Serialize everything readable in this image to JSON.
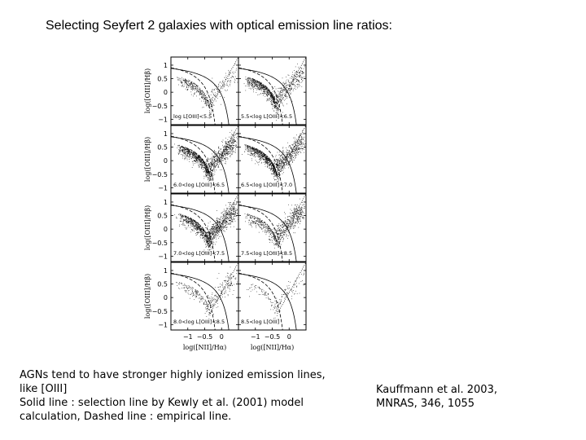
{
  "slide": {
    "title": "Selecting Seyfert 2 galaxies with optical emission line ratios:",
    "caption_left": [
      "AGNs tend to have stronger highly ionized emission lines,",
      "like [OIII]",
      "Solid line  : selection line by Kewly et al. (2001) model",
      "calculation, Dashed line : empirical line."
    ],
    "caption_right": [
      "Kauffmann et  al. 2003,",
      "MNRAS, 346, 1055"
    ]
  },
  "colors": {
    "points": "#000000",
    "frame": "#000000",
    "background": "#ffffff"
  },
  "chart_data": {
    "type": "scatter",
    "layout": {
      "rows": 4,
      "cols": 2
    },
    "xlabel": "log([NII]/Hα)",
    "ylabel": "log([OIII]/Hβ)",
    "xlim": [
      -1.5,
      0.5
    ],
    "ylim": [
      -1.2,
      1.3
    ],
    "x_ticks": [
      -1,
      -0.5,
      0
    ],
    "x_tick_labels": [
      "−1",
      "−0.5",
      "0"
    ],
    "y_ticks": [
      1,
      0.5,
      0,
      -0.5,
      -1
    ],
    "y_tick_labels": [
      "1",
      "0.5",
      "0",
      "−0.5",
      "−1"
    ],
    "panels": [
      {
        "label": "log L[OIII]<5.5",
        "density": 0.35,
        "agn_fraction": 0.3
      },
      {
        "label": "5.5<log L[OIII]<6.5",
        "density": 0.75,
        "agn_fraction": 0.35
      },
      {
        "label": "6.0<log L[OIII]<6.5",
        "density": 1.0,
        "agn_fraction": 0.45
      },
      {
        "label": "6.5<log L[OIII]<7.0",
        "density": 0.95,
        "agn_fraction": 0.45
      },
      {
        "label": "7.0<log L[OIII]<7.5",
        "density": 0.95,
        "agn_fraction": 0.55
      },
      {
        "label": "7.5<log L[OIII]<8.5",
        "density": 0.6,
        "agn_fraction": 0.6
      },
      {
        "label": "8.0<log L[OIII]<8.5",
        "density": 0.25,
        "agn_fraction": 0.55
      },
      {
        "label": "8.5<log L[OIII]",
        "density": 0.12,
        "agn_fraction": 0.55
      }
    ],
    "lines": [
      {
        "name": "Solid line",
        "style": "solid",
        "description": "selection line by Kewly et al. (2001) model calculation"
      },
      {
        "name": "Dashed line",
        "style": "dashed",
        "description": "empirical line"
      }
    ]
  }
}
